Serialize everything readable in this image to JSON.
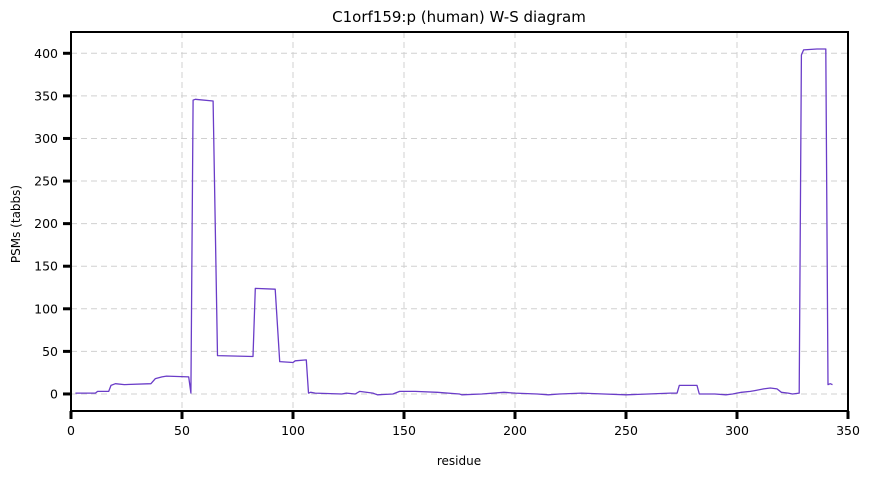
{
  "chart_data": {
    "type": "line",
    "title": "C1orf159:p (human) W-S diagram",
    "xlabel": "residue",
    "ylabel": "PSMs (tabbs)",
    "xlim": [
      0,
      350
    ],
    "ylim": [
      -20,
      425
    ],
    "xticks": [
      0,
      50,
      100,
      150,
      200,
      250,
      300,
      350
    ],
    "yticks": [
      0,
      50,
      100,
      150,
      200,
      250,
      300,
      350,
      400
    ],
    "grid": true,
    "colors": {
      "series": "#6a3cc8"
    },
    "series": [
      {
        "x": [
          2,
          5,
          11,
          12,
          17,
          18,
          20,
          24,
          36,
          38,
          41,
          43,
          53,
          54,
          55,
          56,
          64,
          66,
          82,
          83,
          92,
          94,
          100,
          101,
          106,
          107,
          108,
          110,
          122,
          124,
          128,
          130,
          136,
          138,
          145,
          148,
          155,
          165,
          175,
          176,
          185,
          195,
          200,
          210,
          215,
          220,
          230,
          240,
          250,
          260,
          270,
          273,
          274,
          282,
          283,
          285,
          290,
          295,
          298,
          300,
          302,
          306,
          308,
          312,
          315,
          318,
          320,
          323,
          325,
          328,
          329,
          330,
          336,
          340,
          341,
          342,
          343
        ],
        "values": [
          1,
          1,
          1,
          3,
          3,
          10,
          12,
          11,
          12,
          18,
          20,
          21,
          20,
          1,
          345,
          346,
          344,
          45,
          44,
          124,
          123,
          38,
          37,
          39,
          40,
          1,
          2,
          1,
          0,
          1,
          0,
          3,
          1,
          -1,
          0,
          3,
          3,
          2,
          0,
          -1,
          0,
          2,
          1,
          0,
          -1,
          0,
          1,
          0,
          -1,
          0,
          1,
          1,
          10,
          10,
          0,
          0,
          0,
          -1,
          0,
          1,
          2,
          3,
          4,
          6,
          7,
          6,
          2,
          1,
          0,
          1,
          398,
          404,
          405,
          405,
          11,
          12,
          11
        ]
      }
    ]
  }
}
